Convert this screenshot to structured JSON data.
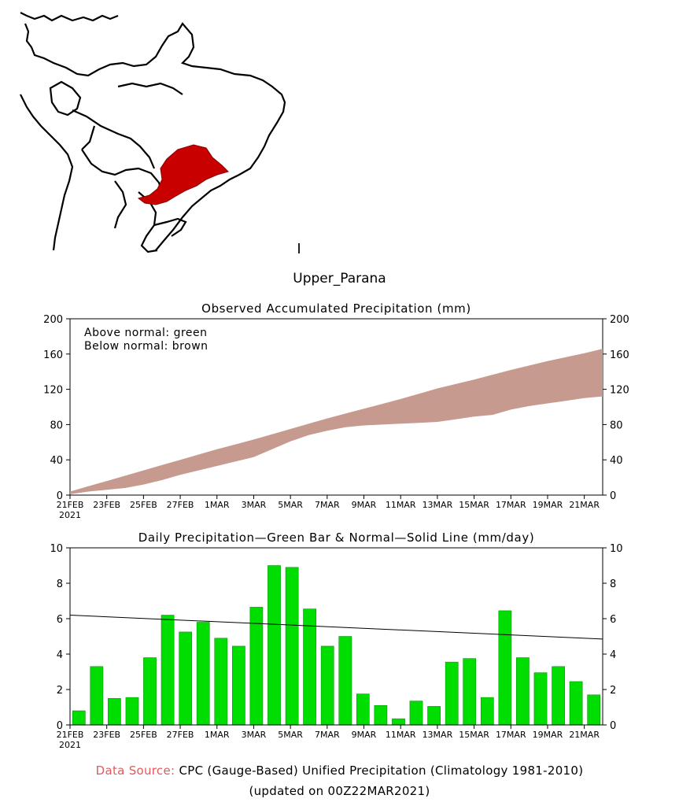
{
  "region": {
    "name": "Upper_Parana",
    "marker": "I"
  },
  "colors": {
    "band": "#c79a8f",
    "bar": "#00dd00",
    "region_fill": "#c80000",
    "source_label": "#e05a5a"
  },
  "x_axis": {
    "ticks": [
      "21FEB",
      "23FEB",
      "25FEB",
      "27FEB",
      "1MAR",
      "3MAR",
      "5MAR",
      "7MAR",
      "9MAR",
      "11MAR",
      "13MAR",
      "15MAR",
      "17MAR",
      "19MAR",
      "21MAR"
    ],
    "tick_days": [
      0,
      2,
      4,
      6,
      8,
      10,
      12,
      14,
      16,
      18,
      20,
      22,
      24,
      26,
      28
    ],
    "year": "2021",
    "x_range_days": [
      0,
      29
    ]
  },
  "chart_data": [
    {
      "type": "area",
      "title": "Observed Accumulated Precipitation (mm)",
      "legend": [
        "Above normal: green",
        "Below normal: brown"
      ],
      "legend_position": "top-left",
      "ylim": [
        0,
        200
      ],
      "yticks": [
        0,
        40,
        80,
        120,
        160,
        200
      ],
      "series": [
        {
          "name": "normal accumulated",
          "x": [
            0,
            2,
            4,
            6,
            8,
            10,
            12,
            14,
            16,
            18,
            20,
            22,
            24,
            26,
            28,
            29
          ],
          "values": [
            4,
            16,
            28,
            40,
            52,
            63,
            75,
            87,
            98,
            109,
            121,
            131,
            142,
            152,
            161,
            166
          ]
        },
        {
          "name": "observed accumulated",
          "x": [
            0,
            1,
            2,
            3,
            4,
            5,
            6,
            7,
            8,
            9,
            10,
            11,
            12,
            13,
            14,
            15,
            16,
            17,
            18,
            19,
            20,
            21,
            22,
            23,
            24,
            25,
            26,
            27,
            28,
            29
          ],
          "values": [
            1,
            4,
            6,
            8,
            12,
            17,
            23,
            28,
            33,
            38,
            43,
            52,
            61,
            68,
            73,
            77,
            79,
            80,
            81,
            82,
            83,
            86,
            89,
            91,
            97,
            101,
            104,
            107,
            110,
            112
          ]
        }
      ]
    },
    {
      "type": "bar",
      "title": "Daily Precipitation—Green Bar & Normal—Solid Line (mm/day)",
      "ylim": [
        0,
        10
      ],
      "yticks": [
        0,
        2,
        4,
        6,
        8,
        10
      ],
      "series": [
        {
          "name": "daily precipitation",
          "values": [
            0.8,
            3.3,
            1.5,
            1.55,
            3.8,
            6.2,
            5.25,
            5.8,
            4.9,
            4.45,
            6.65,
            9.0,
            8.9,
            6.55,
            4.45,
            5.0,
            1.75,
            1.1,
            0.35,
            1.35,
            1.05,
            3.55,
            3.75,
            1.55,
            6.45,
            3.8,
            2.95,
            3.3,
            2.45,
            1.7
          ]
        },
        {
          "name": "normal",
          "x": [
            0,
            30
          ],
          "values": [
            6.2,
            4.85
          ]
        }
      ]
    }
  ],
  "footer": {
    "source_label": "Data Source:",
    "source_text": "CPC (Gauge-Based) Unified Precipitation (Climatology 1981-2010)",
    "updated": "(updated on 00Z22MAR2021)"
  }
}
